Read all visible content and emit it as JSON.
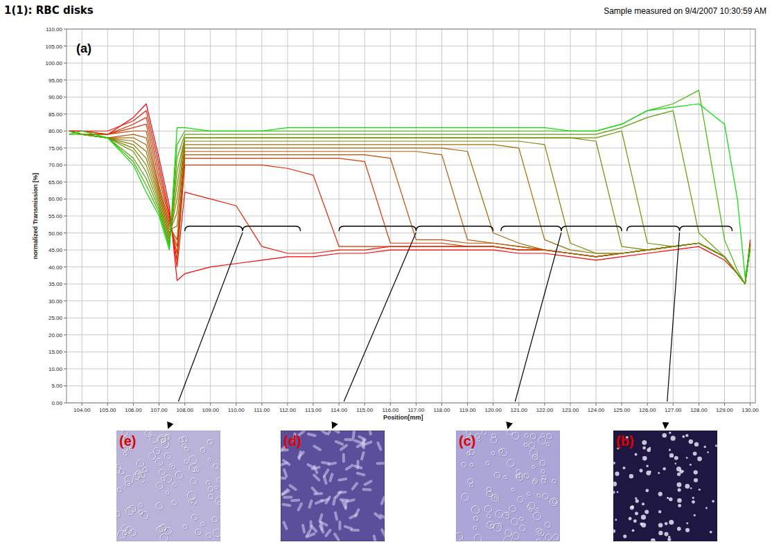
{
  "chart_data": {
    "type": "line",
    "title": "1(1): RBC disks",
    "subtitle": "Sample measured on 9/4/2007 10:30:59 AM",
    "panel_label": "(a)",
    "x_label": "Position[mm]",
    "y_label": "normalized Transmission [%]",
    "grid": true,
    "xlim": [
      103.4,
      130.2
    ],
    "ylim": [
      0,
      110
    ],
    "xticks": [
      {
        "value": 104,
        "label": "104.00"
      },
      {
        "value": 105,
        "label": "105.00"
      },
      {
        "value": 106,
        "label": "106.00"
      },
      {
        "value": 107,
        "label": "107.00"
      },
      {
        "value": 108,
        "label": "108.00"
      },
      {
        "value": 109,
        "label": "109.00"
      },
      {
        "value": 110,
        "label": "110.00"
      },
      {
        "value": 111,
        "label": "111.00"
      },
      {
        "value": 112,
        "label": "112.00"
      },
      {
        "value": 113,
        "label": "113.00"
      },
      {
        "value": 114,
        "label": "114.00"
      },
      {
        "value": 115,
        "label": "115.00"
      },
      {
        "value": 116,
        "label": "116.00"
      },
      {
        "value": 117,
        "label": "117.00"
      },
      {
        "value": 118,
        "label": "118.00"
      },
      {
        "value": 119,
        "label": "119.00"
      },
      {
        "value": 120,
        "label": "120.00"
      },
      {
        "value": 121,
        "label": "121.00"
      },
      {
        "value": 122,
        "label": "122.00"
      },
      {
        "value": 123,
        "label": "123.00"
      },
      {
        "value": 124,
        "label": "124.00"
      },
      {
        "value": 125,
        "label": "125.00"
      },
      {
        "value": 126,
        "label": "126.00"
      },
      {
        "value": 127,
        "label": "127.00"
      },
      {
        "value": 128,
        "label": "128.00"
      },
      {
        "value": 129,
        "label": "129.00"
      },
      {
        "value": 130,
        "label": "130.00"
      }
    ],
    "yticks": [
      {
        "value": 0,
        "label": "0.00"
      },
      {
        "value": 5,
        "label": "5.00"
      },
      {
        "value": 10,
        "label": "10.00"
      },
      {
        "value": 15,
        "label": "15.00"
      },
      {
        "value": 20,
        "label": "20.00"
      },
      {
        "value": 25,
        "label": "25.00"
      },
      {
        "value": 30,
        "label": "30.00"
      },
      {
        "value": 35,
        "label": "35.00"
      },
      {
        "value": 40,
        "label": "40.00"
      },
      {
        "value": 45,
        "label": "45.00"
      },
      {
        "value": 50,
        "label": "50.00"
      },
      {
        "value": 55,
        "label": "55.00"
      },
      {
        "value": 60,
        "label": "60.00"
      },
      {
        "value": 65,
        "label": "65.00"
      },
      {
        "value": 70,
        "label": "70.00"
      },
      {
        "value": 75,
        "label": "75.00"
      },
      {
        "value": 80,
        "label": "80.00"
      },
      {
        "value": 85,
        "label": "85.00"
      },
      {
        "value": 90,
        "label": "90.00"
      },
      {
        "value": 95,
        "label": "95.00"
      },
      {
        "value": 100,
        "label": "100.00"
      },
      {
        "value": 105,
        "label": "105.00"
      },
      {
        "value": 110,
        "label": "110.00"
      }
    ],
    "x": [
      103.5,
      104,
      105,
      106,
      106.5,
      107,
      107.4,
      107.7,
      108,
      109,
      110,
      111,
      112,
      113,
      114,
      115,
      116,
      117,
      118,
      119,
      120,
      121,
      122,
      123,
      124,
      125,
      126,
      127,
      128,
      129,
      129.5,
      129.8,
      130
    ],
    "series": [
      {
        "color": "#ff0000",
        "values": [
          80,
          80,
          79,
          84,
          88,
          72,
          58,
          36,
          38,
          40,
          41,
          42,
          43,
          43,
          44,
          44,
          45,
          45,
          45,
          45,
          45,
          44,
          44,
          43,
          42,
          43,
          44,
          45,
          46,
          42,
          38,
          35,
          48
        ]
      },
      {
        "color": "#ee1a00",
        "values": [
          80,
          80,
          80,
          83,
          86,
          70,
          56,
          40,
          62,
          60,
          58,
          46,
          44,
          44,
          45,
          45,
          46,
          46,
          46,
          46,
          46,
          45,
          45,
          44,
          43,
          44,
          45,
          46,
          47,
          43,
          38,
          35,
          47
        ]
      },
      {
        "color": "#e02a00",
        "values": [
          80,
          80,
          79,
          82,
          84,
          68,
          55,
          42,
          70,
          70,
          70,
          70,
          69,
          67,
          46,
          46,
          46,
          46,
          46,
          46,
          46,
          45,
          45,
          44,
          43,
          44,
          45,
          46,
          47,
          43,
          38,
          35,
          47
        ]
      },
      {
        "color": "#d23a00",
        "values": [
          80,
          79,
          79,
          81,
          82,
          66,
          54,
          44,
          72,
          72,
          72,
          72,
          72,
          72,
          72,
          71,
          47,
          47,
          47,
          46,
          46,
          45,
          45,
          44,
          43,
          44,
          45,
          46,
          47,
          43,
          38,
          35,
          47
        ]
      },
      {
        "color": "#c44a00",
        "values": [
          80,
          79,
          79,
          80,
          80,
          64,
          53,
          46,
          73,
          73,
          73,
          73,
          73,
          73,
          73,
          73,
          72,
          48,
          48,
          47,
          47,
          46,
          45,
          44,
          43,
          44,
          45,
          46,
          47,
          43,
          38,
          35,
          46
        ]
      },
      {
        "color": "#b65800",
        "values": [
          80,
          79,
          78,
          79,
          78,
          63,
          52,
          48,
          74,
          74,
          74,
          74,
          74,
          74,
          74,
          74,
          74,
          74,
          73,
          48,
          47,
          46,
          45,
          44,
          43,
          44,
          45,
          46,
          47,
          43,
          38,
          35,
          46
        ]
      },
      {
        "color": "#a86400",
        "values": [
          80,
          79,
          78,
          78,
          76,
          62,
          51,
          52,
          75,
          75,
          75,
          75,
          75,
          75,
          75,
          75,
          75,
          75,
          75,
          74,
          50,
          47,
          45,
          44,
          43,
          44,
          45,
          46,
          47,
          43,
          38,
          35,
          46
        ]
      },
      {
        "color": "#9a7000",
        "values": [
          80,
          79,
          78,
          77,
          74,
          61,
          50,
          56,
          76,
          76,
          76,
          76,
          76,
          76,
          76,
          76,
          76,
          76,
          76,
          76,
          76,
          75,
          48,
          45,
          44,
          44,
          45,
          46,
          47,
          43,
          38,
          35,
          46
        ]
      },
      {
        "color": "#8a7c00",
        "values": [
          80,
          79,
          78,
          76,
          72,
          60,
          49,
          60,
          77,
          77,
          77,
          77,
          77,
          77,
          77,
          77,
          77,
          77,
          77,
          77,
          77,
          77,
          76,
          47,
          44,
          44,
          45,
          46,
          47,
          43,
          38,
          35,
          46
        ]
      },
      {
        "color": "#7a8800",
        "values": [
          80,
          79,
          78,
          75,
          70,
          59,
          48,
          64,
          78,
          78,
          78,
          78,
          78,
          78,
          78,
          78,
          78,
          78,
          78,
          78,
          78,
          78,
          78,
          78,
          77,
          46,
          45,
          46,
          47,
          43,
          38,
          35,
          46
        ]
      },
      {
        "color": "#6a9400",
        "values": [
          80,
          79,
          78,
          74,
          68,
          58,
          47,
          68,
          78,
          78,
          78,
          78,
          78,
          78,
          78,
          78,
          78,
          78,
          78,
          78,
          78,
          78,
          78,
          78,
          78,
          80,
          47,
          46,
          47,
          43,
          38,
          35,
          46
        ]
      },
      {
        "color": "#58a000",
        "values": [
          80,
          79,
          78,
          72,
          66,
          57,
          46,
          72,
          79,
          79,
          79,
          79,
          79,
          79,
          79,
          79,
          79,
          79,
          79,
          79,
          79,
          79,
          79,
          79,
          79,
          81,
          84,
          86,
          50,
          43,
          38,
          35,
          46
        ]
      },
      {
        "color": "#40b800",
        "values": [
          79,
          79,
          78,
          71,
          64,
          56,
          46,
          76,
          80,
          80,
          80,
          80,
          80,
          80,
          80,
          80,
          80,
          80,
          80,
          80,
          80,
          80,
          80,
          80,
          80,
          82,
          86,
          88,
          92,
          48,
          39,
          35,
          46
        ]
      },
      {
        "color": "#00e000",
        "values": [
          79,
          80,
          78,
          70,
          62,
          55,
          45,
          81,
          81,
          80,
          80,
          80,
          81,
          81,
          81,
          81,
          81,
          81,
          81,
          81,
          81,
          81,
          81,
          80,
          80,
          82,
          86,
          87,
          88,
          82,
          60,
          37,
          45
        ]
      }
    ],
    "regions": [
      {
        "label": "(e)",
        "from": 108.0,
        "to": 112.5,
        "y": 52,
        "color": "#b9b3d9"
      },
      {
        "label": "(d)",
        "from": 114.0,
        "to": 120.0,
        "y": 52,
        "color": "#5b4f9c"
      },
      {
        "label": "(c)",
        "from": 120.3,
        "to": 125.0,
        "y": 52,
        "color": "#aaa6d8"
      },
      {
        "label": "(b)",
        "from": 125.2,
        "to": 129.3,
        "y": 52,
        "color": "#1d1742"
      }
    ]
  }
}
